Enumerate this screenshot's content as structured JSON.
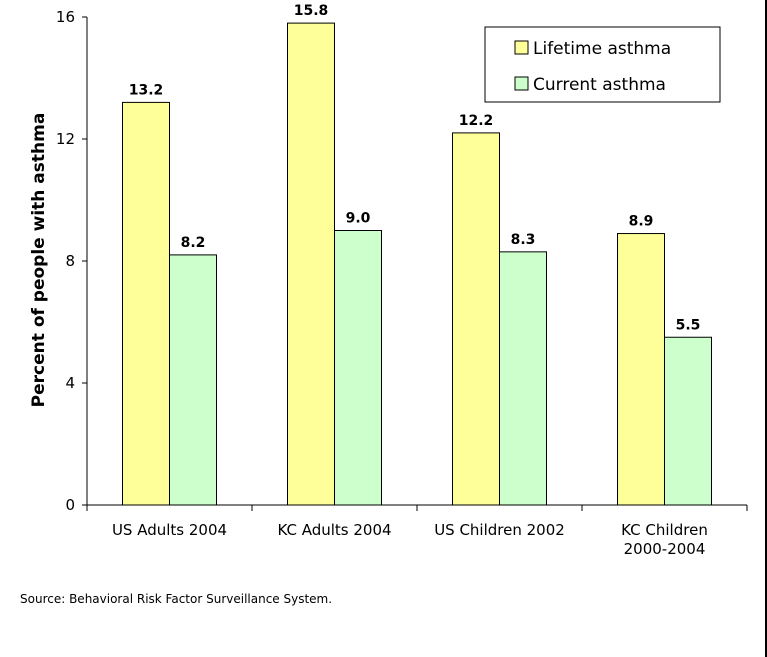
{
  "chart_data": {
    "type": "bar",
    "ylabel": "Percent of people with asthma",
    "ylim": [
      0,
      16
    ],
    "yticks": [
      0,
      4,
      8,
      12,
      16
    ],
    "categories": [
      [
        "US Adults 2004"
      ],
      [
        "KC Adults 2004"
      ],
      [
        "US Children 2002"
      ],
      [
        "KC Children",
        "2000-2004"
      ]
    ],
    "series": [
      {
        "name": "Lifetime asthma",
        "color": "#ffff99",
        "values": [
          13.2,
          15.8,
          12.2,
          8.9
        ],
        "labels": [
          "13.2",
          "15.8",
          "12.2",
          "8.9"
        ]
      },
      {
        "name": "Current asthma",
        "color": "#ccffcc",
        "values": [
          8.2,
          9.0,
          8.3,
          5.5
        ],
        "labels": [
          "8.2",
          "9.0",
          "8.3",
          "5.5"
        ]
      }
    ],
    "legend_position": "top-right",
    "grid": false
  },
  "source": "Source: Behavioral Risk Factor Surveillance System."
}
